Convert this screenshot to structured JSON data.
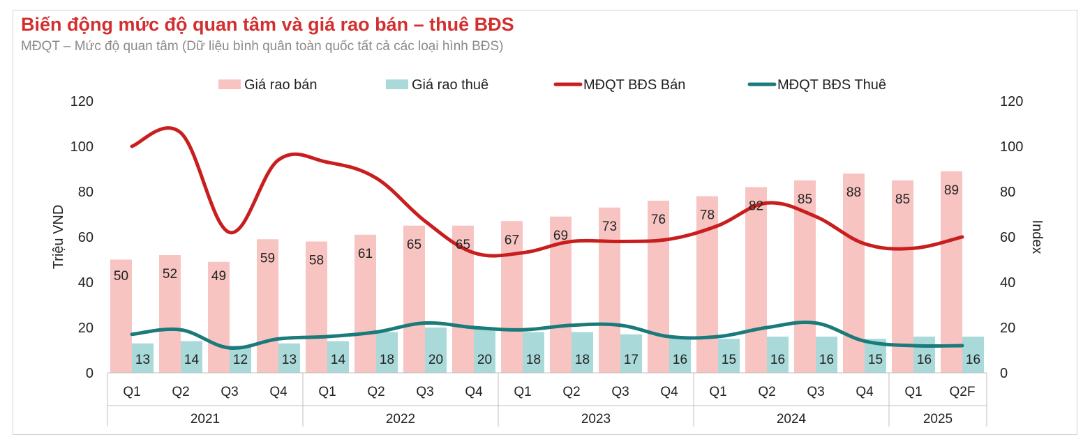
{
  "title": "Biến động mức độ quan tâm và giá rao bán – thuê BĐS",
  "subtitle": "MĐQT – Mức độ quan tâm (Dữ liệu bình quân toàn quốc tất cả các loại hình BĐS)",
  "colors": {
    "title": "#d32f2f",
    "sale_bar": "#f8c4c2",
    "rent_bar": "#a9d9d8",
    "sale_line": "#c81e1e",
    "rent_line": "#1b7a7a"
  },
  "chart_data": {
    "type": "bar+line",
    "title": "Biến động mức độ quan tâm và giá rao bán – thuê BĐS",
    "ylabel": "Triệu VND",
    "y2label": "Index",
    "ylim": [
      0,
      120
    ],
    "y2lim": [
      0,
      120
    ],
    "yticks": [
      0,
      20,
      40,
      60,
      80,
      100,
      120
    ],
    "y2ticks": [
      0,
      20,
      40,
      60,
      80,
      100,
      120
    ],
    "legend_position": "top",
    "categories": [
      "Q1",
      "Q2",
      "Q3",
      "Q4",
      "Q1",
      "Q2",
      "Q3",
      "Q4",
      "Q1",
      "Q2",
      "Q3",
      "Q4",
      "Q1",
      "Q2",
      "Q3",
      "Q4",
      "Q1",
      "Q2F"
    ],
    "year_groups": [
      {
        "label": "2021",
        "count": 4
      },
      {
        "label": "2022",
        "count": 4
      },
      {
        "label": "2023",
        "count": 4
      },
      {
        "label": "2024",
        "count": 4
      },
      {
        "label": "2025",
        "count": 2
      }
    ],
    "series": [
      {
        "name": "Giá rao bán",
        "type": "bar",
        "axis": "left",
        "values": [
          50,
          52,
          49,
          59,
          58,
          61,
          65,
          65,
          67,
          69,
          73,
          76,
          78,
          82,
          85,
          88,
          85,
          89
        ]
      },
      {
        "name": "Giá rao thuê",
        "type": "bar",
        "axis": "left",
        "values": [
          13,
          14,
          12,
          13,
          14,
          18,
          20,
          20,
          18,
          18,
          17,
          16,
          15,
          16,
          16,
          15,
          16,
          16
        ]
      },
      {
        "name": "MĐQT BĐS Bán",
        "type": "line",
        "axis": "right",
        "values": [
          100,
          106,
          62,
          94,
          93,
          86,
          67,
          53,
          53,
          58,
          58,
          59,
          65,
          75,
          69,
          57,
          55,
          60
        ]
      },
      {
        "name": "MĐQT BĐS Thuê",
        "type": "line",
        "axis": "right",
        "values": [
          17,
          19,
          11,
          15,
          16,
          18,
          22,
          20,
          19,
          21,
          21,
          16,
          16,
          20,
          22,
          14,
          12,
          12
        ]
      }
    ]
  }
}
